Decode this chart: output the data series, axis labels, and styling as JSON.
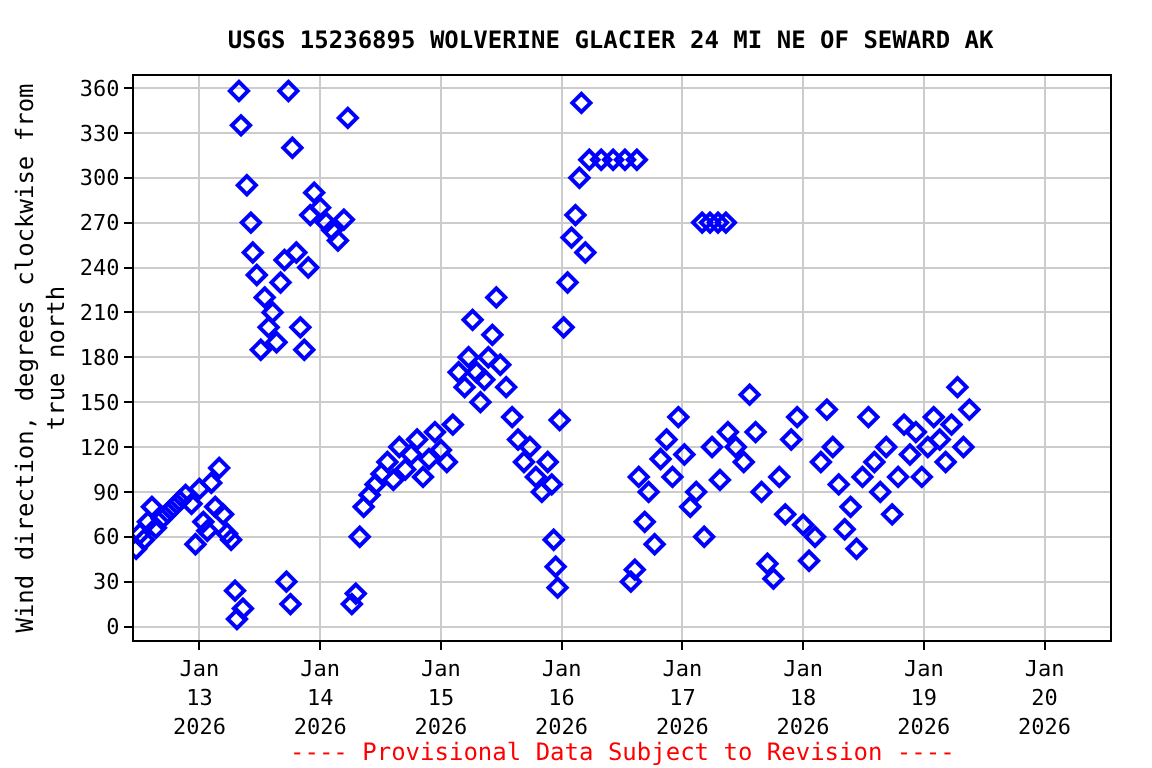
{
  "chart_data": {
    "type": "scatter",
    "title": "USGS 15236895 WOLVERINE GLACIER 24 MI NE OF SEWARD AK",
    "ylabel": "Wind direction, degrees clockwise from\ntrue north",
    "annotations": [
      "---- Provisional Data Subject to Revision ----"
    ],
    "marker": "diamond",
    "grid": true,
    "xlim": [
      "2026-01-12T11:00",
      "2026-01-20T13:00"
    ],
    "xticks": [
      {
        "value": "2026-01-13",
        "label": "Jan\n13\n2026"
      },
      {
        "value": "2026-01-14",
        "label": "Jan\n14\n2026"
      },
      {
        "value": "2026-01-15",
        "label": "Jan\n15\n2026"
      },
      {
        "value": "2026-01-16",
        "label": "Jan\n16\n2026"
      },
      {
        "value": "2026-01-17",
        "label": "Jan\n17\n2026"
      },
      {
        "value": "2026-01-18",
        "label": "Jan\n18\n2026"
      },
      {
        "value": "2026-01-19",
        "label": "Jan\n19\n2026"
      },
      {
        "value": "2026-01-20",
        "label": "Jan\n20\n2026"
      }
    ],
    "ylim": [
      -9,
      368
    ],
    "yticks": [
      0,
      30,
      60,
      90,
      120,
      150,
      180,
      210,
      240,
      270,
      300,
      330,
      360
    ],
    "series": [
      {
        "color": "#0000ff",
        "x": [
          "2026-01-12T11:25",
          "2026-01-12T12:12",
          "2026-01-12T12:59",
          "2026-01-12T13:46",
          "2026-01-12T14:34",
          "2026-01-12T15:21",
          "2026-01-12T16:32",
          "2026-01-12T17:42",
          "2026-01-12T18:53",
          "2026-01-12T20:04",
          "2026-01-12T21:15",
          "2026-01-12T22:26",
          "2026-01-12T23:13",
          "2026-01-13T00:00",
          "2026-01-13T00:47",
          "2026-01-13T01:34",
          "2026-01-13T02:22",
          "2026-01-13T03:09",
          "2026-01-13T03:56",
          "2026-01-13T04:43",
          "2026-01-13T05:30",
          "2026-01-13T06:18",
          "2026-01-13T07:05",
          "2026-01-13T07:28",
          "2026-01-13T07:52",
          "2026-01-13T08:16",
          "2026-01-13T08:39",
          "2026-01-13T09:26",
          "2026-01-13T10:14",
          "2026-01-13T10:37",
          "2026-01-13T11:24",
          "2026-01-13T12:12",
          "2026-01-13T12:59",
          "2026-01-13T13:46",
          "2026-01-13T14:33",
          "2026-01-13T15:20",
          "2026-01-13T16:08",
          "2026-01-13T16:55",
          "2026-01-13T17:18",
          "2026-01-13T17:42",
          "2026-01-13T18:06",
          "2026-01-13T18:29",
          "2026-01-13T19:16",
          "2026-01-13T20:04",
          "2026-01-13T20:51",
          "2026-01-13T21:38",
          "2026-01-13T22:02",
          "2026-01-13T22:49",
          "2026-01-14T00:00",
          "2026-01-14T01:11",
          "2026-01-14T02:22",
          "2026-01-14T03:32",
          "2026-01-14T04:43",
          "2026-01-14T05:30",
          "2026-01-14T06:18",
          "2026-01-14T07:05",
          "2026-01-14T07:52",
          "2026-01-14T08:39",
          "2026-01-14T09:50",
          "2026-01-14T11:01",
          "2026-01-14T12:12",
          "2026-01-14T13:22",
          "2026-01-14T14:33",
          "2026-01-14T15:44",
          "2026-01-14T16:55",
          "2026-01-14T18:06",
          "2026-01-14T19:16",
          "2026-01-14T20:27",
          "2026-01-14T21:38",
          "2026-01-14T22:49",
          "2026-01-15T00:00",
          "2026-01-15T01:11",
          "2026-01-15T02:22",
          "2026-01-15T03:32",
          "2026-01-15T04:43",
          "2026-01-15T05:30",
          "2026-01-15T06:18",
          "2026-01-15T07:05",
          "2026-01-15T07:52",
          "2026-01-15T08:39",
          "2026-01-15T09:26",
          "2026-01-15T10:14",
          "2026-01-15T11:01",
          "2026-01-15T11:48",
          "2026-01-15T12:59",
          "2026-01-15T14:10",
          "2026-01-15T15:20",
          "2026-01-15T16:31",
          "2026-01-15T17:42",
          "2026-01-15T18:53",
          "2026-01-15T20:04",
          "2026-01-15T21:14",
          "2026-01-15T22:02",
          "2026-01-15T22:25",
          "2026-01-15T22:49",
          "2026-01-15T23:12",
          "2026-01-15T23:36",
          "2026-01-16T00:24",
          "2026-01-16T01:11",
          "2026-01-16T01:58",
          "2026-01-16T02:45",
          "2026-01-16T03:32",
          "2026-01-16T03:56",
          "2026-01-16T04:43",
          "2026-01-16T05:30",
          "2026-01-16T07:52",
          "2026-01-16T10:14",
          "2026-01-16T12:35",
          "2026-01-16T14:57",
          "2026-01-16T13:46",
          "2026-01-16T14:33",
          "2026-01-16T15:20",
          "2026-01-16T16:31",
          "2026-01-16T17:18",
          "2026-01-16T18:29",
          "2026-01-16T19:40",
          "2026-01-16T20:51",
          "2026-01-16T22:02",
          "2026-01-16T23:12",
          "2026-01-17T00:24",
          "2026-01-17T01:34",
          "2026-01-17T02:45",
          "2026-01-17T03:56",
          "2026-01-17T05:30",
          "2026-01-17T07:05",
          "2026-01-17T08:39",
          "2026-01-17T04:20",
          "2026-01-17T05:54",
          "2026-01-17T07:28",
          "2026-01-17T09:03",
          "2026-01-17T10:37",
          "2026-01-17T12:12",
          "2026-01-17T13:22",
          "2026-01-17T14:33",
          "2026-01-17T15:44",
          "2026-01-17T16:55",
          "2026-01-17T18:06",
          "2026-01-17T19:16",
          "2026-01-17T20:27",
          "2026-01-17T21:38",
          "2026-01-17T22:49",
          "2026-01-18T00:00",
          "2026-01-18T01:11",
          "2026-01-18T02:22",
          "2026-01-18T03:32",
          "2026-01-18T04:43",
          "2026-01-18T05:54",
          "2026-01-18T07:05",
          "2026-01-18T08:16",
          "2026-01-18T09:26",
          "2026-01-18T10:37",
          "2026-01-18T11:48",
          "2026-01-18T12:59",
          "2026-01-18T14:10",
          "2026-01-18T15:20",
          "2026-01-18T16:31",
          "2026-01-18T17:42",
          "2026-01-18T18:53",
          "2026-01-18T20:04",
          "2026-01-18T21:14",
          "2026-01-18T22:25",
          "2026-01-18T23:36",
          "2026-01-19T00:47",
          "2026-01-19T01:58",
          "2026-01-19T03:09",
          "2026-01-19T04:20",
          "2026-01-19T05:30",
          "2026-01-19T06:41",
          "2026-01-19T07:52",
          "2026-01-19T09:03"
        ],
        "values": [
          52,
          62,
          58,
          70,
          80,
          66,
          72,
          76,
          80,
          84,
          88,
          82,
          55,
          92,
          70,
          64,
          96,
          80,
          106,
          75,
          62,
          58,
          24,
          5,
          358,
          335,
          12,
          295,
          270,
          250,
          235,
          185,
          220,
          200,
          210,
          190,
          230,
          245,
          30,
          358,
          15,
          320,
          250,
          200,
          185,
          240,
          275,
          290,
          280,
          270,
          265,
          258,
          272,
          340,
          15,
          22,
          60,
          80,
          88,
          95,
          102,
          110,
          98,
          120,
          105,
          115,
          125,
          100,
          112,
          130,
          118,
          110,
          135,
          170,
          160,
          180,
          205,
          170,
          150,
          165,
          180,
          195,
          220,
          175,
          160,
          140,
          125,
          110,
          120,
          100,
          90,
          110,
          95,
          58,
          40,
          26,
          138,
          200,
          230,
          260,
          275,
          300,
          350,
          250,
          312,
          312,
          312,
          312,
          312,
          30,
          38,
          100,
          70,
          90,
          55,
          112,
          125,
          100,
          140,
          115,
          80,
          90,
          270,
          270,
          270,
          270,
          60,
          120,
          98,
          130,
          120,
          110,
          155,
          130,
          90,
          42,
          32,
          100,
          75,
          125,
          140,
          68,
          44,
          60,
          110,
          145,
          120,
          95,
          65,
          80,
          52,
          100,
          140,
          110,
          90,
          120,
          75,
          100,
          135,
          115,
          130,
          100,
          120,
          140,
          125,
          110,
          135,
          160,
          120,
          145
        ]
      }
    ]
  }
}
